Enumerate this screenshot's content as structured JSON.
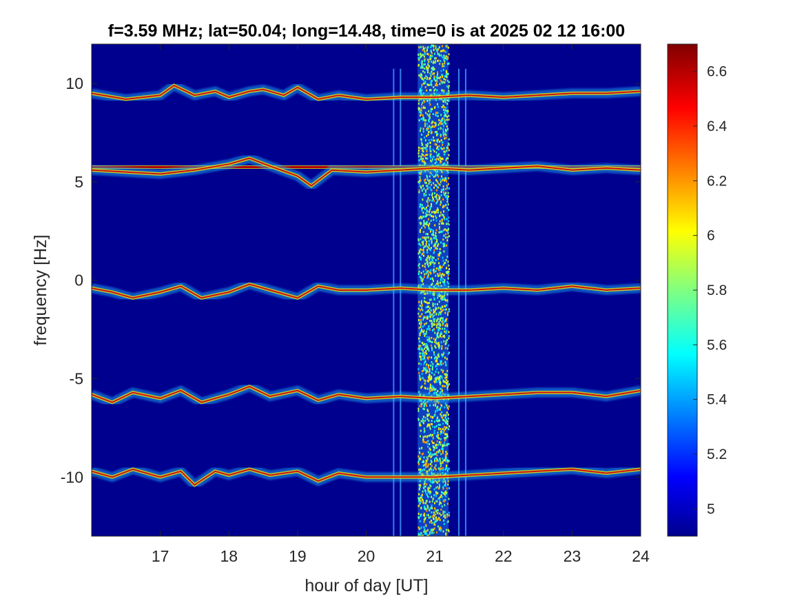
{
  "chart_data": {
    "type": "heatmap",
    "title": "f=3.59 MHz;  lat=50.04; long=14.48, time=0 is at 2025 02 12 16:00",
    "xlabel": "hour of day [UT]",
    "ylabel": "frequency [Hz]",
    "xlim": [
      16.0,
      24.0
    ],
    "ylim": [
      -13.0,
      12.0
    ],
    "x_ticks": [
      17,
      18,
      19,
      20,
      21,
      22,
      23,
      24
    ],
    "y_ticks": [
      -10,
      -5,
      0,
      5,
      10
    ],
    "colormap": "jet",
    "color_range": [
      4.9,
      6.7
    ],
    "colorbar_ticks": [
      5,
      5.2,
      5.4,
      5.6,
      5.8,
      6,
      6.2,
      6.4,
      6.6
    ],
    "background_value": 4.9,
    "background_color": "#00008f",
    "traces": [
      {
        "description": "doppler trace near +9.5 Hz",
        "points": [
          [
            16.0,
            9.5
          ],
          [
            16.5,
            9.2
          ],
          [
            17.0,
            9.4
          ],
          [
            17.2,
            9.9
          ],
          [
            17.5,
            9.4
          ],
          [
            17.8,
            9.6
          ],
          [
            18.0,
            9.3
          ],
          [
            18.3,
            9.6
          ],
          [
            18.5,
            9.7
          ],
          [
            18.8,
            9.4
          ],
          [
            19.0,
            9.8
          ],
          [
            19.3,
            9.2
          ],
          [
            19.6,
            9.4
          ],
          [
            20.0,
            9.2
          ],
          [
            20.5,
            9.3
          ],
          [
            21.0,
            9.3
          ],
          [
            21.5,
            9.4
          ],
          [
            22.0,
            9.3
          ],
          [
            22.5,
            9.4
          ],
          [
            23.0,
            9.5
          ],
          [
            23.5,
            9.5
          ],
          [
            24.0,
            9.6
          ]
        ]
      },
      {
        "description": "strong carrier line near +5.7 Hz",
        "points": [
          [
            16.0,
            5.75
          ],
          [
            18.0,
            5.75
          ],
          [
            20.0,
            5.75
          ],
          [
            22.0,
            5.75
          ],
          [
            24.0,
            5.75
          ]
        ]
      },
      {
        "description": "doppler trace near +5.6 Hz",
        "points": [
          [
            16.0,
            5.6
          ],
          [
            16.5,
            5.5
          ],
          [
            17.0,
            5.4
          ],
          [
            17.5,
            5.6
          ],
          [
            18.0,
            5.9
          ],
          [
            18.3,
            6.2
          ],
          [
            18.6,
            5.8
          ],
          [
            19.0,
            5.3
          ],
          [
            19.2,
            4.8
          ],
          [
            19.5,
            5.6
          ],
          [
            20.0,
            5.5
          ],
          [
            20.5,
            5.6
          ],
          [
            21.0,
            5.7
          ],
          [
            21.5,
            5.6
          ],
          [
            22.0,
            5.7
          ],
          [
            22.5,
            5.8
          ],
          [
            23.0,
            5.6
          ],
          [
            23.5,
            5.7
          ],
          [
            24.0,
            5.6
          ]
        ]
      },
      {
        "description": "doppler trace near -0.5 Hz",
        "points": [
          [
            16.0,
            -0.4
          ],
          [
            16.3,
            -0.6
          ],
          [
            16.6,
            -0.9
          ],
          [
            17.0,
            -0.6
          ],
          [
            17.3,
            -0.3
          ],
          [
            17.6,
            -0.9
          ],
          [
            18.0,
            -0.6
          ],
          [
            18.3,
            -0.2
          ],
          [
            18.6,
            -0.5
          ],
          [
            19.0,
            -0.9
          ],
          [
            19.3,
            -0.3
          ],
          [
            19.6,
            -0.5
          ],
          [
            20.0,
            -0.5
          ],
          [
            20.5,
            -0.4
          ],
          [
            21.0,
            -0.5
          ],
          [
            21.5,
            -0.5
          ],
          [
            22.0,
            -0.4
          ],
          [
            22.5,
            -0.5
          ],
          [
            23.0,
            -0.3
          ],
          [
            23.5,
            -0.5
          ],
          [
            24.0,
            -0.4
          ]
        ]
      },
      {
        "description": "doppler trace near -5.8 Hz",
        "points": [
          [
            16.0,
            -5.8
          ],
          [
            16.3,
            -6.2
          ],
          [
            16.6,
            -5.7
          ],
          [
            17.0,
            -6.0
          ],
          [
            17.3,
            -5.6
          ],
          [
            17.6,
            -6.2
          ],
          [
            18.0,
            -5.8
          ],
          [
            18.3,
            -5.4
          ],
          [
            18.6,
            -5.9
          ],
          [
            19.0,
            -5.6
          ],
          [
            19.3,
            -6.1
          ],
          [
            19.6,
            -5.8
          ],
          [
            20.0,
            -6.0
          ],
          [
            20.5,
            -5.9
          ],
          [
            21.0,
            -6.0
          ],
          [
            21.5,
            -5.9
          ],
          [
            22.0,
            -5.8
          ],
          [
            22.5,
            -5.7
          ],
          [
            23.0,
            -5.7
          ],
          [
            23.5,
            -5.9
          ],
          [
            24.0,
            -5.6
          ]
        ]
      },
      {
        "description": "doppler trace near -9.8 Hz",
        "points": [
          [
            16.0,
            -9.7
          ],
          [
            16.3,
            -10.0
          ],
          [
            16.6,
            -9.6
          ],
          [
            17.0,
            -10.0
          ],
          [
            17.3,
            -9.7
          ],
          [
            17.5,
            -10.4
          ],
          [
            17.8,
            -9.7
          ],
          [
            18.0,
            -9.9
          ],
          [
            18.3,
            -9.6
          ],
          [
            18.6,
            -9.9
          ],
          [
            19.0,
            -9.7
          ],
          [
            19.3,
            -10.2
          ],
          [
            19.6,
            -9.8
          ],
          [
            20.0,
            -10.0
          ],
          [
            20.5,
            -10.0
          ],
          [
            21.0,
            -10.0
          ],
          [
            21.5,
            -9.9
          ],
          [
            22.0,
            -9.8
          ],
          [
            22.5,
            -9.7
          ],
          [
            23.0,
            -9.6
          ],
          [
            23.5,
            -9.8
          ],
          [
            24.0,
            -9.6
          ]
        ]
      }
    ],
    "broadband_band": {
      "x_range": [
        20.75,
        21.2
      ],
      "description": "vertical broadband noise across all frequencies"
    },
    "spikes_x": [
      20.4,
      20.5,
      21.35,
      21.45
    ]
  }
}
